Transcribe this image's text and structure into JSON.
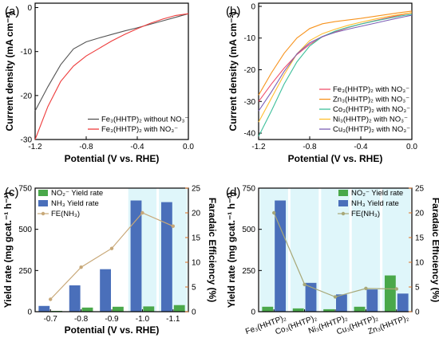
{
  "chart_data": [
    {
      "panel": "(a)",
      "type": "line",
      "xlabel": "Potential (V vs. RHE)",
      "ylabel": "Current density (mA cm⁻²)",
      "xlim": [
        -1.2,
        0.0
      ],
      "ylim": [
        -30,
        1
      ],
      "xticks": [
        "-1.2",
        "-0.8",
        "-0.4",
        "0.0"
      ],
      "yticks": [
        "-30",
        "-20",
        "-10",
        "0"
      ],
      "legend_position": "bottom-right",
      "series": [
        {
          "name": "Fe₃(HHTP)₂ without NO₃⁻",
          "color": "#555555",
          "x": [
            -1.2,
            -1.1,
            -1.0,
            -0.9,
            -0.8,
            -0.7,
            -0.6,
            -0.5,
            -0.4,
            -0.3,
            -0.2,
            -0.1,
            0.0
          ],
          "y": [
            -23.5,
            -18.0,
            -13.0,
            -9.4,
            -7.8,
            -6.9,
            -6.1,
            -5.3,
            -4.6,
            -3.8,
            -3.0,
            -2.2,
            -1.4
          ]
        },
        {
          "name": "Fe₃(HHTP)₂ with NO₃⁻",
          "color": "#ee3b3b",
          "x": [
            -1.2,
            -1.1,
            -1.0,
            -0.9,
            -0.8,
            -0.7,
            -0.6,
            -0.5,
            -0.4,
            -0.3,
            -0.2,
            -0.1,
            0.0
          ],
          "y": [
            -30.0,
            -22.5,
            -16.8,
            -13.3,
            -11.0,
            -9.3,
            -7.6,
            -6.1,
            -4.8,
            -3.6,
            -2.6,
            -1.8,
            -1.4
          ]
        }
      ]
    },
    {
      "panel": "(b)",
      "type": "line",
      "xlabel": "Potential (V vs. RHE)",
      "ylabel": "Current density (mA cm⁻²)",
      "xlim": [
        -1.2,
        0.0
      ],
      "ylim": [
        -42,
        1
      ],
      "xticks": [
        "-1.2",
        "-0.8",
        "-0.4",
        "0.0"
      ],
      "yticks": [
        "-40",
        "-30",
        "-20",
        "-10",
        "0"
      ],
      "legend_position": "bottom-right",
      "series": [
        {
          "name": "Fe₃(HHTP)₂ with NO₃⁻",
          "color": "#f0506e",
          "x": [
            -1.2,
            -1.1,
            -1.0,
            -0.9,
            -0.8,
            -0.7,
            -0.6,
            -0.5,
            -0.4,
            -0.3,
            -0.2,
            -0.1,
            0.0
          ],
          "y": [
            -30.0,
            -24.5,
            -19.5,
            -15.2,
            -12.0,
            -9.6,
            -8.0,
            -6.7,
            -5.6,
            -4.6,
            -3.7,
            -2.8,
            -2.0
          ]
        },
        {
          "name": "Zn₃(HHTP)₂ with NO₃⁻",
          "color": "#f7931e",
          "x": [
            -1.2,
            -1.1,
            -1.0,
            -0.9,
            -0.8,
            -0.7,
            -0.6,
            -0.5,
            -0.4,
            -0.3,
            -0.2,
            -0.1,
            0.0
          ],
          "y": [
            -28.0,
            -21.0,
            -14.8,
            -10.0,
            -7.0,
            -5.5,
            -4.8,
            -4.3,
            -3.8,
            -3.2,
            -2.6,
            -2.0,
            -1.5
          ]
        },
        {
          "name": "Co₃(HHTP)₂ with NO₃⁻",
          "color": "#3dbf9a",
          "x": [
            -1.2,
            -1.1,
            -1.0,
            -0.9,
            -0.8,
            -0.7,
            -0.6,
            -0.5,
            -0.4,
            -0.3,
            -0.2,
            -0.1,
            0.0
          ],
          "y": [
            -41.0,
            -33.0,
            -24.5,
            -17.5,
            -12.5,
            -9.5,
            -7.8,
            -6.6,
            -5.6,
            -4.7,
            -3.9,
            -3.1,
            -2.5
          ]
        },
        {
          "name": "Ni₃(HHTP)₂ with NO₃⁻",
          "color": "#ffbe2e",
          "x": [
            -1.2,
            -1.1,
            -1.0,
            -0.9,
            -0.8,
            -0.7,
            -0.6,
            -0.5,
            -0.4,
            -0.3,
            -0.2,
            -0.1,
            0.0
          ],
          "y": [
            -36.5,
            -29.0,
            -21.5,
            -15.0,
            -10.8,
            -8.6,
            -7.2,
            -6.0,
            -5.0,
            -4.1,
            -3.3,
            -2.6,
            -2.0
          ]
        },
        {
          "name": "Cu₃(HHTP)₂ with NO₃⁻",
          "color": "#7b5fb5",
          "x": [
            -1.2,
            -1.1,
            -1.0,
            -0.9,
            -0.8,
            -0.7,
            -0.6,
            -0.5,
            -0.4,
            -0.3,
            -0.2,
            -0.1,
            0.0
          ],
          "y": [
            -33.0,
            -27.0,
            -20.5,
            -15.0,
            -11.5,
            -9.5,
            -8.2,
            -7.2,
            -6.3,
            -5.4,
            -4.5,
            -3.6,
            -2.8
          ]
        }
      ]
    },
    {
      "panel": "(c)",
      "type": "bar",
      "xlabel": "Potential (V vs. RHE)",
      "ylabel": "Yield rate (mg gcat.⁻¹ h⁻¹)",
      "y2label": "Faradaic Efficiency (%)",
      "categories": [
        "-0.7",
        "-0.8",
        "-0.9",
        "-1.0",
        "-1.1"
      ],
      "ylim": [
        0,
        750
      ],
      "yticks": [
        "0",
        "250",
        "500",
        "750"
      ],
      "y2lim": [
        0,
        25
      ],
      "y2ticks": [
        "0",
        "5",
        "10",
        "15",
        "20",
        "25"
      ],
      "highlight_categories": [
        "-1.0",
        "-1.1"
      ],
      "legend_position": "top-left",
      "series": [
        {
          "name": "NO₂⁻ Yield rate",
          "kind": "bar",
          "color": "#4aa84a",
          "values": [
            5,
            25,
            30,
            32,
            40
          ]
        },
        {
          "name": "NH₃ Yield rate",
          "kind": "bar",
          "color": "#4a6fba",
          "values": [
            35,
            160,
            258,
            675,
            665
          ]
        },
        {
          "name": "FE(NH₃)",
          "kind": "line",
          "axis": "right",
          "color": "#c8a878",
          "values": [
            2.5,
            9.0,
            12.8,
            20.0,
            17.3
          ]
        }
      ]
    },
    {
      "panel": "(d)",
      "type": "bar",
      "ylabel": "Yield rate (mg gcat.⁻¹ h⁻¹)",
      "y2label": "Faradaic Efficiency (%)",
      "categories": [
        "Fe₃(HHTP)₂",
        "Co₃(HHTP)₂",
        "Ni₃(HHTP)₂",
        "Cu₃(HHTP)₂",
        "Zn₃(HHTP)₂"
      ],
      "ylim": [
        0,
        750
      ],
      "yticks": [
        "0",
        "250",
        "500",
        "750"
      ],
      "y2lim": [
        0,
        25
      ],
      "y2ticks": [
        "0",
        "5",
        "10",
        "15",
        "20",
        "25"
      ],
      "highlight_categories": [
        "Fe₃(HHTP)₂",
        "Co₃(HHTP)₂",
        "Ni₃(HHTP)₂",
        "Cu₃(HHTP)₂",
        "Zn₃(HHTP)₂"
      ],
      "legend_position": "top-right",
      "series": [
        {
          "name": "NO₂⁻ Yield rate",
          "kind": "bar",
          "color": "#4aa84a",
          "values": [
            30,
            20,
            15,
            30,
            220
          ]
        },
        {
          "name": "NH₃ Yield rate",
          "kind": "bar",
          "color": "#4a6fba",
          "values": [
            675,
            175,
            105,
            135,
            110
          ]
        },
        {
          "name": "FE(NH₃)",
          "kind": "line",
          "axis": "right",
          "color": "#a8a878",
          "values": [
            20.0,
            5.5,
            3.0,
            4.7,
            4.6
          ]
        }
      ]
    }
  ]
}
